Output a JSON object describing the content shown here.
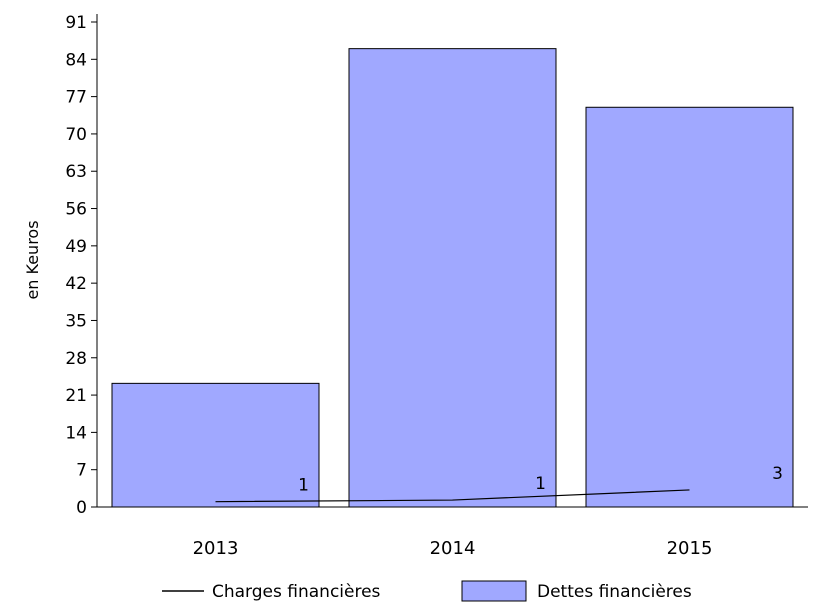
{
  "chart_data": {
    "type": "bar",
    "categories": [
      "2013",
      "2014",
      "2015"
    ],
    "series": [
      {
        "name": "Dettes financières",
        "type": "bar",
        "values": [
          23.2,
          86,
          75
        ],
        "color": "#a0a8ff"
      },
      {
        "name": "Charges financières",
        "type": "line",
        "values": [
          1,
          1.3,
          3.2
        ],
        "data_labels": [
          "1",
          "1",
          "3"
        ],
        "color": "#000000"
      }
    ],
    "ylabel": "en Keuros",
    "xlabel": "",
    "ylim": [
      0,
      91
    ],
    "yticks": [
      "0",
      "7",
      "14",
      "21",
      "28",
      "35",
      "42",
      "49",
      "56",
      "63",
      "70",
      "77",
      "84",
      "91"
    ],
    "grid": false,
    "legend_position": "bottom"
  }
}
